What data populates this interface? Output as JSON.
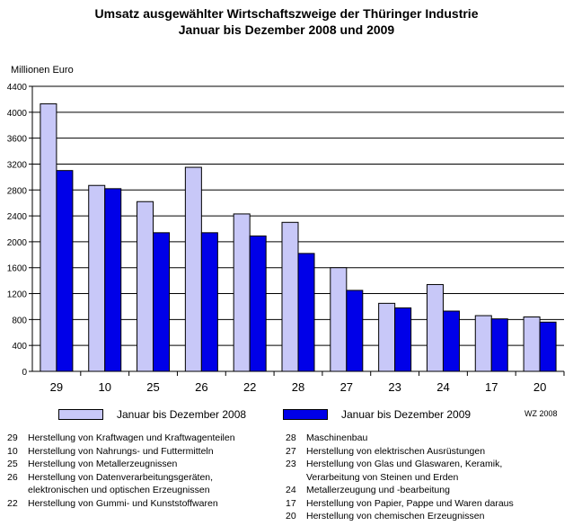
{
  "title_line1": "Umsatz ausgewählter Wirtschaftszweige der Thüringer Industrie",
  "title_line2": "Januar bis Dezember 2008 und 2009",
  "source": "WZ 2008",
  "colors": {
    "series_2008": "#c8c8f8",
    "series_2009": "#0000e8"
  },
  "chart_data": {
    "type": "bar",
    "ylabel": "Millionen Euro",
    "ylim": [
      0,
      4400
    ],
    "yticks": [
      0,
      400,
      800,
      1200,
      1600,
      2000,
      2400,
      2800,
      3200,
      3600,
      4000,
      4400
    ],
    "categories": [
      "29",
      "10",
      "25",
      "26",
      "22",
      "28",
      "27",
      "23",
      "24",
      "17",
      "20"
    ],
    "series": [
      {
        "name": "Januar bis Dezember 2008",
        "values": [
          4130,
          2870,
          2620,
          3150,
          2430,
          2300,
          1600,
          1050,
          1340,
          860,
          840
        ]
      },
      {
        "name": "Januar bis Dezember 2009",
        "values": [
          3100,
          2820,
          2140,
          2140,
          2090,
          1820,
          1250,
          980,
          930,
          810,
          760
        ]
      }
    ],
    "grid": true,
    "legend_position": "bottom"
  },
  "notes_left": [
    {
      "code": "29",
      "text": "Herstellung von Kraftwagen und Kraftwagenteilen"
    },
    {
      "code": "10",
      "text": "Herstellung von Nahrungs- und Futtermitteln"
    },
    {
      "code": "25",
      "text": "Herstellung von Metallerzeugnissen"
    },
    {
      "code": "26",
      "text": "Herstellung von Datenverarbeitungsgeräten,"
    },
    {
      "code": "",
      "text": "elektronischen und optischen Erzeugnissen"
    },
    {
      "code": "22",
      "text": "Herstellung von Gummi- und Kunststoffwaren"
    }
  ],
  "notes_right": [
    {
      "code": "28",
      "text": "Maschinenbau"
    },
    {
      "code": "27",
      "text": "Herstellung von elektrischen Ausrüstungen"
    },
    {
      "code": "23",
      "text": "Herstellung von Glas und Glaswaren, Keramik,"
    },
    {
      "code": "",
      "text": "Verarbeitung von Steinen und Erden"
    },
    {
      "code": "24",
      "text": "Metallerzeugung und -bearbeitung"
    },
    {
      "code": "17",
      "text": "Herstellung von Papier, Pappe und Waren daraus"
    },
    {
      "code": "20",
      "text": "Herstellung von chemischen Erzeugnissen"
    }
  ]
}
